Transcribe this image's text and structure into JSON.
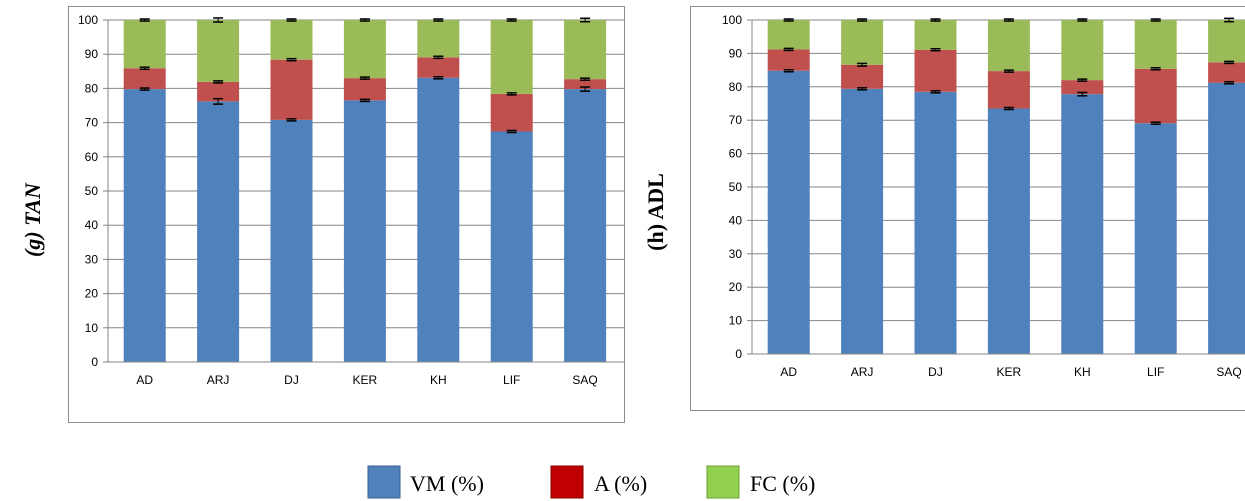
{
  "legend": [
    {
      "label": "VM (%)",
      "color": "#4f81bd"
    },
    {
      "label": "A (%)",
      "color": "#c00000"
    },
    {
      "label": "FC (%)",
      "color": "#92d050"
    }
  ],
  "chart_data": [
    {
      "type": "bar",
      "stacked": true,
      "ylabel": "(g) TAN",
      "ylim": [
        0,
        100
      ],
      "yticks": [
        0,
        10,
        20,
        30,
        40,
        50,
        60,
        70,
        80,
        90,
        100
      ],
      "categories": [
        "AD",
        "ARJ",
        "DJ",
        "KER",
        "KH",
        "LIF",
        "SAQ"
      ],
      "series": [
        {
          "name": "VM (%)",
          "color": "#4f81bd",
          "values": [
            79.8,
            76.2,
            70.8,
            76.5,
            83.1,
            67.4,
            79.8
          ]
        },
        {
          "name": "A (%)",
          "color": "#c0504d",
          "values": [
            6.1,
            5.7,
            17.6,
            6.5,
            6.0,
            11.0,
            2.9
          ]
        },
        {
          "name": "FC (%)",
          "color": "#9bbb59",
          "values": [
            14.1,
            18.1,
            11.6,
            17.0,
            10.9,
            21.6,
            17.3
          ]
        }
      ],
      "error_bars": [
        [
          0.3,
          0.8,
          0.3,
          0.3,
          0.3,
          0.3,
          0.6
        ],
        [
          0.3,
          0.3,
          0.3,
          0.3,
          0.3,
          0.3,
          0.3
        ],
        [
          0.3,
          0.6,
          0.3,
          0.3,
          0.3,
          0.3,
          0.5
        ]
      ]
    },
    {
      "type": "bar",
      "stacked": true,
      "ylabel": "(h) ADL",
      "ylim": [
        0,
        100
      ],
      "yticks": [
        0,
        10,
        20,
        30,
        40,
        50,
        60,
        70,
        80,
        90,
        100
      ],
      "categories": [
        "AD",
        "ARJ",
        "DJ",
        "KER",
        "KH",
        "LIF",
        "SAQ"
      ],
      "series": [
        {
          "name": "VM (%)",
          "color": "#4f81bd",
          "values": [
            84.8,
            79.4,
            78.5,
            73.5,
            77.8,
            69.1,
            81.2
          ]
        },
        {
          "name": "A (%)",
          "color": "#c0504d",
          "values": [
            6.4,
            7.2,
            12.6,
            11.2,
            4.2,
            16.3,
            6.1
          ]
        },
        {
          "name": "FC (%)",
          "color": "#9bbb59",
          "values": [
            8.8,
            13.4,
            8.9,
            15.3,
            18.0,
            14.6,
            12.7
          ]
        }
      ],
      "error_bars": [
        [
          0.3,
          0.3,
          0.3,
          0.3,
          0.5,
          0.3,
          0.3
        ],
        [
          0.3,
          0.4,
          0.3,
          0.3,
          0.3,
          0.3,
          0.3
        ],
        [
          0.3,
          0.3,
          0.3,
          0.3,
          0.3,
          0.3,
          0.5
        ]
      ]
    }
  ]
}
